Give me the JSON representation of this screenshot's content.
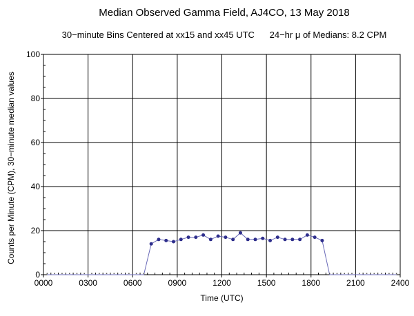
{
  "chart_data": {
    "type": "line",
    "title": "Median Observed Gamma Field, AJ4CO, 13 May 2018",
    "subtitle": "30−minute Bins Centered at xx15 and xx45 UTC",
    "annotation": "24−hr μ of Medians: 8.2 CPM",
    "xlabel": "Time (UTC)",
    "ylabel": "Counts per Minute (CPM), 30−minute median values",
    "xlim": [
      0,
      24
    ],
    "ylim": [
      0,
      100
    ],
    "x_ticks": [
      {
        "value": 0,
        "label": "0000"
      },
      {
        "value": 3,
        "label": "0300"
      },
      {
        "value": 6,
        "label": "0600"
      },
      {
        "value": 9,
        "label": "0900"
      },
      {
        "value": 12,
        "label": "1200"
      },
      {
        "value": 15,
        "label": "1500"
      },
      {
        "value": 18,
        "label": "1800"
      },
      {
        "value": 21,
        "label": "2100"
      },
      {
        "value": 24,
        "label": "2400"
      }
    ],
    "y_ticks": [
      0,
      20,
      40,
      60,
      80,
      100
    ],
    "grid": true,
    "colors": {
      "line": "#6a6ab8",
      "marker": "#2e2e8c",
      "grid": "#000000"
    },
    "series": [
      {
        "x": [
          0.25,
          0.75,
          1.25,
          1.75,
          2.25,
          2.75,
          3.25,
          3.75,
          4.25,
          4.75,
          5.25,
          5.75,
          6.25,
          6.75,
          7.25,
          7.75,
          8.25,
          8.75,
          9.25,
          9.75,
          10.25,
          10.75,
          11.25,
          11.75,
          12.25,
          12.75,
          13.25,
          13.75,
          14.25,
          14.75,
          15.25,
          15.75,
          16.25,
          16.75,
          17.25,
          17.75,
          18.25,
          18.75,
          19.25,
          19.75,
          20.25,
          20.75,
          21.25,
          21.75,
          22.25,
          22.75,
          23.25,
          23.75
        ],
        "values": [
          0,
          0,
          0,
          0,
          0,
          0,
          0,
          0,
          0,
          0,
          0,
          0,
          0,
          0,
          14,
          16,
          15.5,
          15,
          16,
          17,
          17,
          18,
          16,
          17.5,
          17,
          16,
          19,
          16,
          16,
          16.5,
          15.5,
          17,
          16,
          16,
          16,
          18,
          17,
          15.5,
          0,
          0,
          0,
          0,
          0,
          0,
          0,
          0,
          0,
          0
        ]
      }
    ]
  }
}
